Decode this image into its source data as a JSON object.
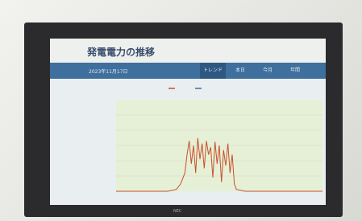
{
  "header": {
    "title": "発電電力の推移"
  },
  "toolbar": {
    "date": "2023年11月17日",
    "tabs": [
      "トレンド",
      "本日",
      "今月",
      "年間"
    ]
  },
  "bezel": {
    "brand": "NEC"
  },
  "chart_data": {
    "type": "line",
    "x": [
      0,
      6,
      7,
      7.5,
      8,
      8.25,
      8.5,
      8.75,
      9,
      9.25,
      9.5,
      9.75,
      10,
      10.25,
      10.5,
      10.75,
      11,
      11.25,
      11.5,
      11.75,
      12,
      12.25,
      12.5,
      12.75,
      13,
      13.25,
      13.5,
      13.75,
      14,
      15,
      24
    ],
    "series": [
      {
        "color": "#c8502c",
        "values": [
          0,
          0,
          2,
          8,
          20,
          40,
          55,
          30,
          50,
          20,
          58,
          35,
          52,
          25,
          55,
          40,
          48,
          15,
          54,
          30,
          50,
          10,
          45,
          28,
          52,
          20,
          40,
          8,
          2,
          0,
          0
        ]
      }
    ],
    "xlim": [
      0,
      24
    ],
    "ylim": [
      0,
      100
    ],
    "grid": true
  }
}
